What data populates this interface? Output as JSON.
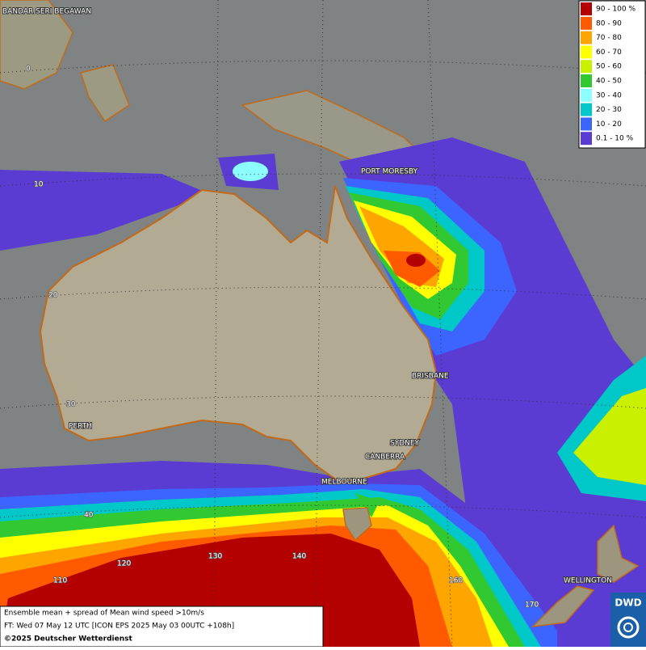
{
  "map": {
    "cities": [
      "BANDAR SERI BEGAWAN",
      "PORT MORESBY",
      "BRISBANE",
      "SYDNEY",
      "CANBERRA",
      "MELBOURNE",
      "PERTH",
      "WELLINGTON"
    ],
    "grid_labels": [
      "0",
      "10",
      "20",
      "30",
      "40",
      "110",
      "120",
      "130",
      "140",
      "160",
      "170"
    ]
  },
  "legend": {
    "entries": [
      {
        "label": "90 - 100 %",
        "color": "#b40000"
      },
      {
        "label": "80 - 90",
        "color": "#ff5a00"
      },
      {
        "label": "70 - 80",
        "color": "#ffa500"
      },
      {
        "label": "60 - 70",
        "color": "#ffff00"
      },
      {
        "label": "50 - 60",
        "color": "#c8f000"
      },
      {
        "label": "40 - 50",
        "color": "#32c832"
      },
      {
        "label": "30 - 40",
        "color": "#8cffff"
      },
      {
        "label": "20 - 30",
        "color": "#00c8c8"
      },
      {
        "label": "10 - 20",
        "color": "#3c64ff"
      },
      {
        "label": "0.1 - 10 %",
        "color": "#5a3cd2"
      }
    ]
  },
  "footer": {
    "line1": "Ensemble mean + spread of Mean wind speed >10m/s",
    "line2": "FT: Wed 07 May 12 UTC [ICON EPS 2025 May 03 00UTC +108h]",
    "line3": "©2025 Deutscher Wetterdienst"
  },
  "logo": "DWD"
}
